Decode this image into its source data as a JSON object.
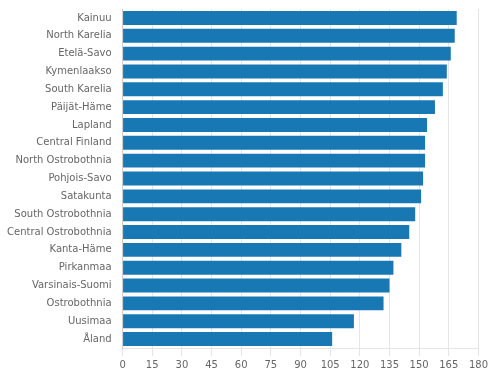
{
  "chart_data": {
    "type": "bar",
    "orientation": "horizontal",
    "categories": [
      "Kainuu",
      "North Karelia",
      "Etelä-Savo",
      "Kymenlaakso",
      "South Karelia",
      "Päijät-Häme",
      "Lapland",
      "Central Finland",
      "North Ostrobothnia",
      "Pohjois-Savo",
      "Satakunta",
      "South Ostrobothnia",
      "Central Ostrobothnia",
      "Kanta-Häme",
      "Pirkanmaa",
      "Varsinais-Suomi",
      "Ostrobothnia",
      "Uusimaa",
      "Åland"
    ],
    "values": [
      169,
      168,
      166,
      164,
      162,
      158,
      154,
      153,
      153,
      152,
      151,
      148,
      145,
      141,
      137,
      135,
      132,
      117,
      106
    ],
    "color": "#1878b4",
    "xlim": [
      0,
      180
    ],
    "xticks": [
      0,
      15,
      30,
      45,
      60,
      75,
      90,
      105,
      120,
      135,
      150,
      165,
      180
    ],
    "grid": true
  }
}
